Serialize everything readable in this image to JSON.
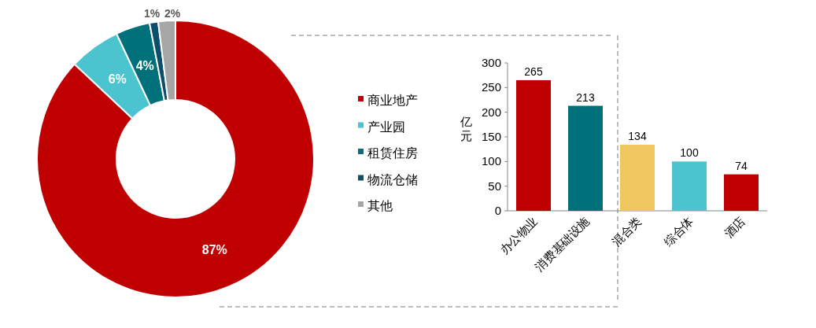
{
  "chart_data": [
    {
      "type": "donut",
      "categories": [
        "商业地产",
        "产业园",
        "租赁住房",
        "物流仓储",
        "其他"
      ],
      "values": [
        87,
        6,
        4,
        1,
        2
      ],
      "colors": [
        "#c00000",
        "#4bc4cf",
        "#00707a",
        "#0b4f6c",
        "#a6a6a6"
      ],
      "value_labels": [
        "87%",
        "6%",
        "4%",
        "1%",
        "2%"
      ],
      "legend": "right"
    },
    {
      "type": "bar",
      "categories": [
        "办公物业",
        "消费基础设施",
        "混合类",
        "综合体",
        "酒店"
      ],
      "values": [
        265,
        213,
        134,
        100,
        74
      ],
      "colors": [
        "#c00000",
        "#00707a",
        "#f0c75e",
        "#4bc4cf",
        "#c00000"
      ],
      "ylabel": "亿元",
      "ylim": [
        0,
        300
      ],
      "yticks": [
        0,
        50,
        100,
        150,
        200,
        250,
        300
      ],
      "data_labels": true,
      "grid": false
    }
  ]
}
